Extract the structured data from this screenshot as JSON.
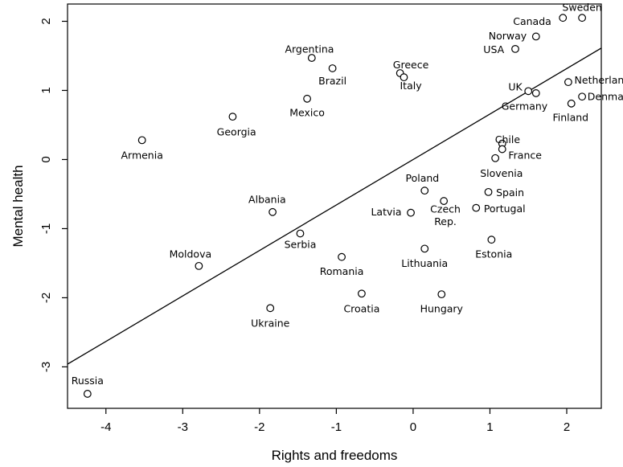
{
  "chart_data": {
    "type": "scatter",
    "title": "",
    "xlabel": "Rights and freedoms",
    "ylabel": "Mental health",
    "xlim": [
      -4.5,
      2.45
    ],
    "ylim": [
      -3.6,
      2.25
    ],
    "xticks": [
      -4,
      -3,
      -2,
      -1,
      0,
      1,
      2
    ],
    "yticks": [
      -3,
      -2,
      -1,
      0,
      1,
      2
    ],
    "grid": false,
    "legend": "none",
    "regression_line": {
      "slope": 0.658,
      "intercept": 0.0
    },
    "points": [
      {
        "name": "Sweden",
        "x": 2.2,
        "y": 2.05,
        "lx": 2.2,
        "ly": 2.2,
        "anchor": "middle"
      },
      {
        "name": "Canada",
        "x": 1.95,
        "y": 2.05,
        "lx": 1.55,
        "ly": 2.0,
        "anchor": "middle"
      },
      {
        "name": "Norway",
        "x": 1.6,
        "y": 1.78,
        "lx": 1.23,
        "ly": 1.79,
        "anchor": "middle"
      },
      {
        "name": "USA",
        "x": 1.33,
        "y": 1.6,
        "lx": 1.05,
        "ly": 1.59,
        "anchor": "middle"
      },
      {
        "name": "Argentina",
        "x": -1.32,
        "y": 1.47,
        "lx": -1.35,
        "ly": 1.6,
        "anchor": "middle"
      },
      {
        "name": "Brazil",
        "x": -1.05,
        "y": 1.32,
        "lx": -1.05,
        "ly": 1.14,
        "anchor": "middle"
      },
      {
        "name": "Greece",
        "x": -0.17,
        "y": 1.25,
        "lx": -0.03,
        "ly": 1.37,
        "anchor": "middle"
      },
      {
        "name": "Italy",
        "x": -0.12,
        "y": 1.19,
        "lx": -0.03,
        "ly": 1.07,
        "anchor": "middle"
      },
      {
        "name": "UK",
        "x": 1.5,
        "y": 0.99,
        "lx": 1.33,
        "ly": 1.05,
        "anchor": "middle"
      },
      {
        "name": "Netherlands",
        "x": 2.02,
        "y": 1.12,
        "lx": 2.1,
        "ly": 1.15,
        "anchor": "start"
      },
      {
        "name": "Germany",
        "x": 1.6,
        "y": 0.96,
        "lx": 1.45,
        "ly": 0.77,
        "anchor": "middle"
      },
      {
        "name": "Denmark",
        "x": 2.2,
        "y": 0.91,
        "lx": 2.27,
        "ly": 0.91,
        "anchor": "start"
      },
      {
        "name": "Finland",
        "x": 2.06,
        "y": 0.81,
        "lx": 2.05,
        "ly": 0.61,
        "anchor": "middle"
      },
      {
        "name": "Mexico",
        "x": -1.38,
        "y": 0.88,
        "lx": -1.38,
        "ly": 0.68,
        "anchor": "middle"
      },
      {
        "name": "Georgia",
        "x": -2.35,
        "y": 0.62,
        "lx": -2.3,
        "ly": 0.4,
        "anchor": "middle"
      },
      {
        "name": "Armenia",
        "x": -3.53,
        "y": 0.28,
        "lx": -3.53,
        "ly": 0.06,
        "anchor": "middle"
      },
      {
        "name": "Chile",
        "x": 1.16,
        "y": 0.23,
        "lx": 1.23,
        "ly": 0.29,
        "anchor": "middle"
      },
      {
        "name": "France",
        "x": 1.16,
        "y": 0.15,
        "lx": 1.24,
        "ly": 0.06,
        "anchor": "start"
      },
      {
        "name": "Slovenia",
        "x": 1.07,
        "y": 0.02,
        "lx": 1.15,
        "ly": -0.2,
        "anchor": "middle"
      },
      {
        "name": "Poland",
        "x": 0.15,
        "y": -0.45,
        "lx": 0.12,
        "ly": -0.27,
        "anchor": "middle"
      },
      {
        "name": "Spain",
        "x": 0.98,
        "y": -0.47,
        "lx": 1.08,
        "ly": -0.48,
        "anchor": "start"
      },
      {
        "name": "Albania",
        "x": -1.83,
        "y": -0.76,
        "lx": -1.9,
        "ly": -0.58,
        "anchor": "middle"
      },
      {
        "name": "Latvia",
        "x": -0.03,
        "y": -0.77,
        "lx": -0.35,
        "ly": -0.76,
        "anchor": "middle"
      },
      {
        "name": "Czech",
        "x": 0.4,
        "y": -0.6,
        "lx": 0.42,
        "ly": -0.72,
        "anchor": "middle"
      },
      {
        "name": "Rep.",
        "x": null,
        "y": null,
        "lx": 0.42,
        "ly": -0.9,
        "anchor": "middle"
      },
      {
        "name": "Portugal",
        "x": 0.82,
        "y": -0.7,
        "lx": 0.92,
        "ly": -0.71,
        "anchor": "start"
      },
      {
        "name": "Serbia",
        "x": -1.47,
        "y": -1.07,
        "lx": -1.47,
        "ly": -1.23,
        "anchor": "middle"
      },
      {
        "name": "Lithuania",
        "x": 0.15,
        "y": -1.29,
        "lx": 0.15,
        "ly": -1.5,
        "anchor": "middle"
      },
      {
        "name": "Estonia",
        "x": 1.02,
        "y": -1.16,
        "lx": 1.05,
        "ly": -1.37,
        "anchor": "middle"
      },
      {
        "name": "Moldova",
        "x": -2.79,
        "y": -1.54,
        "lx": -2.9,
        "ly": -1.37,
        "anchor": "middle"
      },
      {
        "name": "Romania",
        "x": -0.93,
        "y": -1.41,
        "lx": -0.93,
        "ly": -1.62,
        "anchor": "middle"
      },
      {
        "name": "Croatia",
        "x": -0.67,
        "y": -1.94,
        "lx": -0.67,
        "ly": -2.16,
        "anchor": "middle"
      },
      {
        "name": "Hungary",
        "x": 0.37,
        "y": -1.95,
        "lx": 0.37,
        "ly": -2.16,
        "anchor": "middle"
      },
      {
        "name": "Ukraine",
        "x": -1.86,
        "y": -2.15,
        "lx": -1.86,
        "ly": -2.37,
        "anchor": "middle"
      },
      {
        "name": "Russia",
        "x": -4.24,
        "y": -3.39,
        "lx": -4.24,
        "ly": -3.2,
        "anchor": "middle"
      }
    ]
  }
}
